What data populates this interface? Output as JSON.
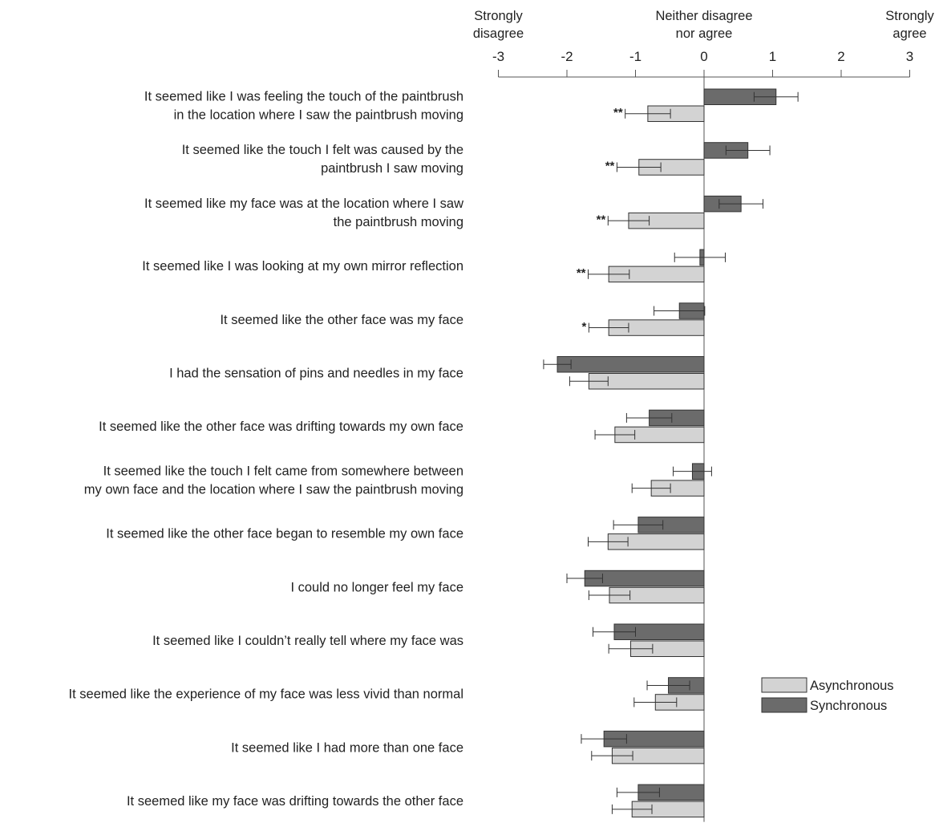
{
  "chart_data": {
    "type": "bar",
    "orientation": "horizontal",
    "xlim": [
      -3,
      3
    ],
    "x_ticks": [
      "-3",
      "-2",
      "-1",
      "0",
      "1",
      "2",
      "3"
    ],
    "x_anchor_labels": [
      {
        "value": -3,
        "lines": [
          "Strongly",
          "disagree"
        ]
      },
      {
        "value": 0,
        "lines": [
          "Neither disagree",
          "nor agree"
        ]
      },
      {
        "value": 3,
        "lines": [
          "Strongly",
          "agree"
        ]
      }
    ],
    "legend_position": "bottom-right",
    "grid": false,
    "series": [
      {
        "name": "Asynchronous",
        "color": "#d3d3d3"
      },
      {
        "name": "Synchronous",
        "color": "#6b6b6b"
      }
    ],
    "items": [
      {
        "label": [
          "It seemed like I was feeling the touch of the paintbrush",
          "in the location where I saw the paintbrush moving"
        ],
        "synchronous": 1.05,
        "synchronous_err": 0.32,
        "asynchronous": -0.82,
        "asynchronous_err": 0.33,
        "significance": "**"
      },
      {
        "label": [
          "It seemed like the touch I felt was caused by the",
          "paintbrush I saw moving"
        ],
        "synchronous": 0.64,
        "synchronous_err": 0.32,
        "asynchronous": -0.95,
        "asynchronous_err": 0.32,
        "significance": "**"
      },
      {
        "label": [
          "It seemed like my face was at the location where I saw",
          "the paintbrush moving"
        ],
        "synchronous": 0.54,
        "synchronous_err": 0.32,
        "asynchronous": -1.1,
        "asynchronous_err": 0.3,
        "significance": "**"
      },
      {
        "label": [
          "It seemed like I was looking at my own mirror reflection"
        ],
        "synchronous": -0.06,
        "synchronous_err": 0.37,
        "asynchronous": -1.39,
        "asynchronous_err": 0.3,
        "significance": "**"
      },
      {
        "label": [
          "It seemed like the other face was my face"
        ],
        "synchronous": -0.36,
        "synchronous_err": 0.37,
        "asynchronous": -1.39,
        "asynchronous_err": 0.29,
        "significance": "*"
      },
      {
        "label": [
          "I had the sensation of pins and needles in my face"
        ],
        "synchronous": -2.14,
        "synchronous_err": 0.2,
        "asynchronous": -1.68,
        "asynchronous_err": 0.28,
        "significance": ""
      },
      {
        "label": [
          "It seemed like the other face was drifting towards my own face"
        ],
        "synchronous": -0.8,
        "synchronous_err": 0.33,
        "asynchronous": -1.3,
        "asynchronous_err": 0.29,
        "significance": ""
      },
      {
        "label": [
          "It seemed like the touch I felt came from somewhere between",
          "my own face and the location where I saw the paintbrush moving"
        ],
        "synchronous": -0.17,
        "synchronous_err": 0.28,
        "asynchronous": -0.77,
        "asynchronous_err": 0.28,
        "significance": ""
      },
      {
        "label": [
          "It seemed like the other face began to resemble my own face"
        ],
        "synchronous": -0.96,
        "synchronous_err": 0.36,
        "asynchronous": -1.4,
        "asynchronous_err": 0.29,
        "significance": ""
      },
      {
        "label": [
          "I could no longer feel my face"
        ],
        "synchronous": -1.74,
        "synchronous_err": 0.26,
        "asynchronous": -1.38,
        "asynchronous_err": 0.3,
        "significance": ""
      },
      {
        "label": [
          "It seemed like I couldn’t really tell where my face was"
        ],
        "synchronous": -1.31,
        "synchronous_err": 0.31,
        "asynchronous": -1.07,
        "asynchronous_err": 0.32,
        "significance": ""
      },
      {
        "label": [
          "It seemed like the experience of my face was less vivid than normal"
        ],
        "synchronous": -0.52,
        "synchronous_err": 0.31,
        "asynchronous": -0.71,
        "asynchronous_err": 0.31,
        "significance": ""
      },
      {
        "label": [
          "It seemed like I had more than one face"
        ],
        "synchronous": -1.46,
        "synchronous_err": 0.33,
        "asynchronous": -1.34,
        "asynchronous_err": 0.3,
        "significance": ""
      },
      {
        "label": [
          "It seemed like my face was drifting towards the other face"
        ],
        "synchronous": -0.96,
        "synchronous_err": 0.31,
        "asynchronous": -1.05,
        "asynchronous_err": 0.29,
        "significance": ""
      }
    ]
  }
}
